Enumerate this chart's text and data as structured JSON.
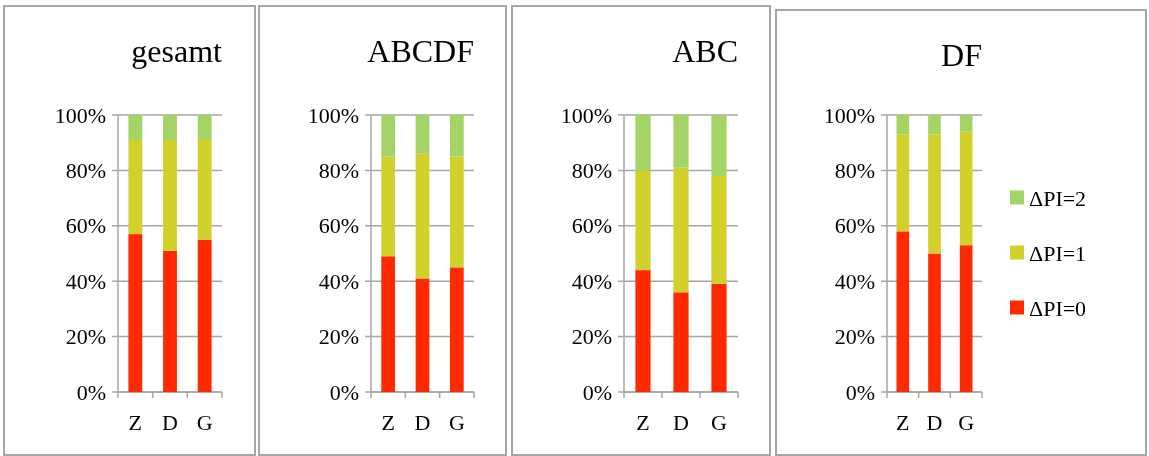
{
  "chart_data": [
    {
      "type": "bar",
      "title": "gesamt",
      "stacked": true,
      "categories": [
        "Z",
        "D",
        "G"
      ],
      "ylim": [
        0,
        100
      ],
      "yticks": [
        {
          "value": 0,
          "label": "0%"
        },
        {
          "value": 20,
          "label": "20%"
        },
        {
          "value": 40,
          "label": "40%"
        },
        {
          "value": 60,
          "label": "60%"
        },
        {
          "value": 80,
          "label": "80%"
        },
        {
          "value": 100,
          "label": "100%"
        }
      ],
      "grid": "y",
      "legend": false,
      "series": [
        {
          "color": "#ff2a00",
          "values": [
            57,
            51,
            55
          ]
        },
        {
          "color": "#d2d12b",
          "values": [
            34,
            40,
            36
          ]
        },
        {
          "color": "#a3d465",
          "values": [
            9,
            9,
            9
          ]
        }
      ]
    },
    {
      "type": "bar",
      "title": "ABCDF",
      "stacked": true,
      "categories": [
        "Z",
        "D",
        "G"
      ],
      "ylim": [
        0,
        100
      ],
      "yticks": [
        {
          "value": 0,
          "label": "0%"
        },
        {
          "value": 20,
          "label": "20%"
        },
        {
          "value": 40,
          "label": "40%"
        },
        {
          "value": 60,
          "label": "60%"
        },
        {
          "value": 80,
          "label": "80%"
        },
        {
          "value": 100,
          "label": "100%"
        }
      ],
      "grid": "y",
      "legend": false,
      "series": [
        {
          "color": "#ff2a00",
          "values": [
            49,
            41,
            45
          ]
        },
        {
          "color": "#d2d12b",
          "values": [
            36,
            45,
            40
          ]
        },
        {
          "color": "#a3d465",
          "values": [
            15,
            14,
            15
          ]
        }
      ]
    },
    {
      "type": "bar",
      "title": "ABC",
      "stacked": true,
      "categories": [
        "Z",
        "D",
        "G"
      ],
      "ylim": [
        0,
        100
      ],
      "yticks": [
        {
          "value": 0,
          "label": "0%"
        },
        {
          "value": 20,
          "label": "20%"
        },
        {
          "value": 40,
          "label": "40%"
        },
        {
          "value": 60,
          "label": "60%"
        },
        {
          "value": 80,
          "label": "80%"
        },
        {
          "value": 100,
          "label": "100%"
        }
      ],
      "grid": "y",
      "legend": false,
      "series": [
        {
          "color": "#ff2a00",
          "values": [
            44,
            36,
            39
          ]
        },
        {
          "color": "#d2d12b",
          "values": [
            36,
            45,
            39
          ]
        },
        {
          "color": "#a3d465",
          "values": [
            20,
            19,
            22
          ]
        }
      ]
    },
    {
      "type": "bar",
      "title": "DF",
      "stacked": true,
      "categories": [
        "Z",
        "D",
        "G"
      ],
      "ylim": [
        0,
        100
      ],
      "yticks": [
        {
          "value": 0,
          "label": "0%"
        },
        {
          "value": 20,
          "label": "20%"
        },
        {
          "value": 40,
          "label": "40%"
        },
        {
          "value": 60,
          "label": "60%"
        },
        {
          "value": 80,
          "label": "80%"
        },
        {
          "value": 100,
          "label": "100%"
        }
      ],
      "grid": "y",
      "legend": "right",
      "series": [
        {
          "name": "ΔPI=0",
          "color": "#ff2a00",
          "values": [
            58,
            50,
            53
          ]
        },
        {
          "name": "ΔPI=1",
          "color": "#d2d12b",
          "values": [
            35,
            43,
            41
          ]
        },
        {
          "name": "ΔPI=2",
          "color": "#a3d465",
          "values": [
            7,
            7,
            6
          ]
        }
      ]
    }
  ]
}
